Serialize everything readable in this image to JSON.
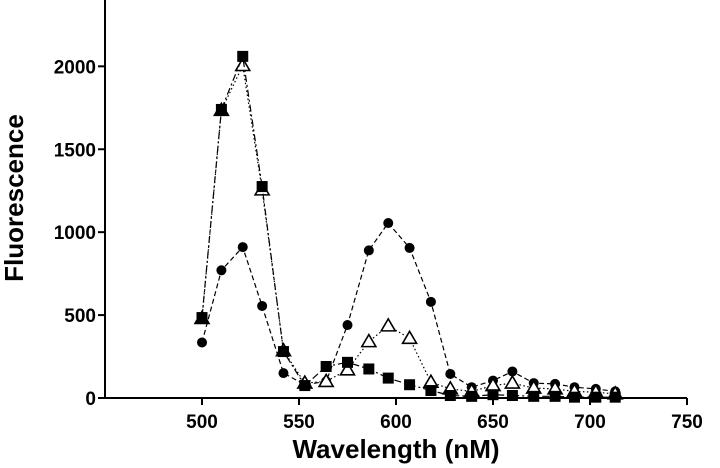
{
  "chart_data": {
    "type": "line",
    "title": "",
    "xlabel": "Wavelength (nM)",
    "ylabel": "Fluorescence",
    "xlim": [
      450,
      750
    ],
    "ylim": [
      0,
      2400
    ],
    "xticks": [
      "500",
      "550",
      "600",
      "650",
      "700",
      "750"
    ],
    "yticks": [
      "0",
      "500",
      "1000",
      "1500",
      "2000"
    ],
    "grid": false,
    "legend": "none",
    "series": [
      {
        "marker": "circle-filled",
        "line": "dashed",
        "color": "#000000",
        "x": [
          500,
          510,
          521,
          531,
          542,
          553,
          564,
          575,
          586,
          596,
          607,
          618,
          628,
          639,
          650,
          660,
          671,
          682,
          692,
          703,
          713
        ],
        "y": [
          335,
          770,
          910,
          555,
          150,
          80,
          100,
          440,
          890,
          1055,
          905,
          580,
          145,
          65,
          105,
          160,
          90,
          85,
          65,
          55,
          40
        ]
      },
      {
        "marker": "triangle-open",
        "line": "dotted",
        "color": "#000000",
        "x": [
          500,
          510,
          521,
          531,
          542,
          553,
          564,
          575,
          586,
          596,
          607,
          618,
          628,
          639,
          650,
          660,
          671,
          682,
          692,
          703,
          713
        ],
        "y": [
          480,
          1735,
          2005,
          1255,
          285,
          90,
          100,
          170,
          340,
          435,
          360,
          95,
          55,
          40,
          75,
          90,
          60,
          55,
          40,
          35,
          25
        ]
      },
      {
        "marker": "square-filled",
        "line": "dash-dot",
        "color": "#000000",
        "x": [
          500,
          510,
          521,
          531,
          542,
          553,
          564,
          575,
          586,
          596,
          607,
          618,
          628,
          639,
          650,
          660,
          671,
          682,
          692,
          703,
          713
        ],
        "y": [
          485,
          1740,
          2060,
          1275,
          280,
          75,
          190,
          215,
          175,
          120,
          80,
          45,
          15,
          10,
          20,
          15,
          10,
          10,
          5,
          5,
          5
        ]
      }
    ]
  }
}
